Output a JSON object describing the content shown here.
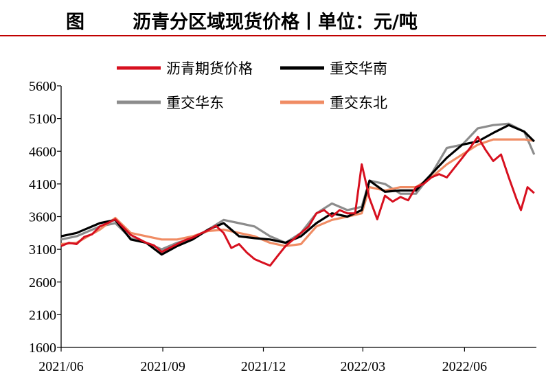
{
  "header": {
    "fig_label": "图",
    "title": "沥青分区域现货价格丨单位：元/吨"
  },
  "colors": {
    "rule": "#c00000",
    "futures": "#d7101f",
    "south": "#000000",
    "east": "#8c8c8c",
    "northeast": "#f08c64"
  },
  "chart_data": {
    "type": "line",
    "ylim": [
      1600,
      5600
    ],
    "yticks": [
      "5600",
      "5100",
      "4600",
      "4100",
      "3600",
      "3100",
      "2600",
      "2100",
      "1600"
    ],
    "xticks": [
      "2021/06",
      "2021/09",
      "2021/12",
      "2022/03",
      "2022/06"
    ],
    "xlim": [
      "2021-06-01",
      "2022-08-05"
    ],
    "legend_position": "top",
    "series": [
      {
        "name": "沥青期货价格",
        "key": "futures",
        "points": [
          [
            "2021-06-01",
            3150
          ],
          [
            "2021-06-08",
            3200
          ],
          [
            "2021-06-15",
            3180
          ],
          [
            "2021-06-22",
            3290
          ],
          [
            "2021-06-29",
            3330
          ],
          [
            "2021-07-06",
            3450
          ],
          [
            "2021-07-13",
            3500
          ],
          [
            "2021-07-20",
            3560
          ],
          [
            "2021-07-27",
            3440
          ],
          [
            "2021-08-03",
            3320
          ],
          [
            "2021-08-10",
            3260
          ],
          [
            "2021-08-17",
            3200
          ],
          [
            "2021-08-24",
            3160
          ],
          [
            "2021-08-31",
            3060
          ],
          [
            "2021-09-07",
            3120
          ],
          [
            "2021-09-14",
            3180
          ],
          [
            "2021-09-21",
            3240
          ],
          [
            "2021-09-28",
            3280
          ],
          [
            "2021-10-05",
            3340
          ],
          [
            "2021-10-12",
            3390
          ],
          [
            "2021-10-19",
            3460
          ],
          [
            "2021-10-26",
            3350
          ],
          [
            "2021-11-02",
            3120
          ],
          [
            "2021-11-09",
            3180
          ],
          [
            "2021-11-16",
            3050
          ],
          [
            "2021-11-23",
            2950
          ],
          [
            "2021-11-30",
            2900
          ],
          [
            "2021-12-07",
            2850
          ],
          [
            "2021-12-14",
            3000
          ],
          [
            "2021-12-21",
            3150
          ],
          [
            "2021-12-28",
            3250
          ],
          [
            "2022-01-04",
            3350
          ],
          [
            "2022-01-11",
            3450
          ],
          [
            "2022-01-18",
            3650
          ],
          [
            "2022-01-25",
            3700
          ],
          [
            "2022-02-01",
            3600
          ],
          [
            "2022-02-08",
            3700
          ],
          [
            "2022-02-15",
            3650
          ],
          [
            "2022-02-22",
            3650
          ],
          [
            "2022-02-28",
            4400
          ],
          [
            "2022-03-07",
            3880
          ],
          [
            "2022-03-14",
            3560
          ],
          [
            "2022-03-21",
            3920
          ],
          [
            "2022-03-28",
            3830
          ],
          [
            "2022-04-04",
            3900
          ],
          [
            "2022-04-11",
            3850
          ],
          [
            "2022-04-18",
            4050
          ],
          [
            "2022-04-25",
            4100
          ],
          [
            "2022-05-02",
            4200
          ],
          [
            "2022-05-09",
            4250
          ],
          [
            "2022-05-16",
            4200
          ],
          [
            "2022-05-23",
            4350
          ],
          [
            "2022-05-30",
            4500
          ],
          [
            "2022-06-06",
            4650
          ],
          [
            "2022-06-13",
            4820
          ],
          [
            "2022-06-20",
            4620
          ],
          [
            "2022-06-27",
            4450
          ],
          [
            "2022-07-04",
            4550
          ],
          [
            "2022-07-11",
            4200
          ],
          [
            "2022-07-18",
            3870
          ],
          [
            "2022-07-22",
            3700
          ],
          [
            "2022-07-28",
            4050
          ],
          [
            "2022-08-03",
            3960
          ]
        ]
      },
      {
        "name": "重交华南",
        "key": "south",
        "points": [
          [
            "2021-06-01",
            3300
          ],
          [
            "2021-06-15",
            3350
          ],
          [
            "2021-07-06",
            3500
          ],
          [
            "2021-07-20",
            3550
          ],
          [
            "2021-08-03",
            3250
          ],
          [
            "2021-08-17",
            3200
          ],
          [
            "2021-08-31",
            3020
          ],
          [
            "2021-09-14",
            3150
          ],
          [
            "2021-09-28",
            3250
          ],
          [
            "2021-10-12",
            3400
          ],
          [
            "2021-10-26",
            3500
          ],
          [
            "2021-11-09",
            3300
          ],
          [
            "2021-11-23",
            3270
          ],
          [
            "2021-12-07",
            3250
          ],
          [
            "2021-12-21",
            3200
          ],
          [
            "2022-01-04",
            3300
          ],
          [
            "2022-01-18",
            3500
          ],
          [
            "2022-02-01",
            3650
          ],
          [
            "2022-02-15",
            3600
          ],
          [
            "2022-02-28",
            3700
          ],
          [
            "2022-03-07",
            4150
          ],
          [
            "2022-03-21",
            3980
          ],
          [
            "2022-04-04",
            4000
          ],
          [
            "2022-04-18",
            4000
          ],
          [
            "2022-05-02",
            4250
          ],
          [
            "2022-05-16",
            4500
          ],
          [
            "2022-05-30",
            4700
          ],
          [
            "2022-06-13",
            4750
          ],
          [
            "2022-06-27",
            4880
          ],
          [
            "2022-07-11",
            5000
          ],
          [
            "2022-07-25",
            4900
          ],
          [
            "2022-08-03",
            4750
          ]
        ]
      },
      {
        "name": "重交华东",
        "key": "east",
        "points": [
          [
            "2021-06-01",
            3250
          ],
          [
            "2021-06-15",
            3300
          ],
          [
            "2021-07-06",
            3450
          ],
          [
            "2021-07-20",
            3500
          ],
          [
            "2021-08-03",
            3270
          ],
          [
            "2021-08-17",
            3200
          ],
          [
            "2021-08-31",
            3100
          ],
          [
            "2021-09-14",
            3200
          ],
          [
            "2021-09-28",
            3270
          ],
          [
            "2021-10-12",
            3400
          ],
          [
            "2021-10-26",
            3550
          ],
          [
            "2021-11-09",
            3500
          ],
          [
            "2021-11-23",
            3450
          ],
          [
            "2021-12-07",
            3300
          ],
          [
            "2021-12-21",
            3200
          ],
          [
            "2022-01-04",
            3350
          ],
          [
            "2022-01-18",
            3650
          ],
          [
            "2022-02-01",
            3800
          ],
          [
            "2022-02-15",
            3700
          ],
          [
            "2022-02-28",
            3750
          ],
          [
            "2022-03-07",
            4150
          ],
          [
            "2022-03-21",
            4100
          ],
          [
            "2022-04-04",
            3950
          ],
          [
            "2022-04-18",
            3950
          ],
          [
            "2022-05-02",
            4250
          ],
          [
            "2022-05-16",
            4650
          ],
          [
            "2022-05-30",
            4700
          ],
          [
            "2022-06-13",
            4950
          ],
          [
            "2022-06-27",
            5000
          ],
          [
            "2022-07-11",
            5020
          ],
          [
            "2022-07-25",
            4900
          ],
          [
            "2022-08-03",
            4550
          ]
        ]
      },
      {
        "name": "重交东北",
        "key": "northeast",
        "points": [
          [
            "2021-06-01",
            3180
          ],
          [
            "2021-06-15",
            3200
          ],
          [
            "2021-07-06",
            3400
          ],
          [
            "2021-07-20",
            3580
          ],
          [
            "2021-08-03",
            3350
          ],
          [
            "2021-08-17",
            3300
          ],
          [
            "2021-08-31",
            3250
          ],
          [
            "2021-09-14",
            3250
          ],
          [
            "2021-09-28",
            3300
          ],
          [
            "2021-10-12",
            3380
          ],
          [
            "2021-10-26",
            3400
          ],
          [
            "2021-11-09",
            3350
          ],
          [
            "2021-11-23",
            3300
          ],
          [
            "2021-12-07",
            3200
          ],
          [
            "2021-12-21",
            3150
          ],
          [
            "2022-01-04",
            3180
          ],
          [
            "2022-01-18",
            3450
          ],
          [
            "2022-02-01",
            3550
          ],
          [
            "2022-02-15",
            3600
          ],
          [
            "2022-02-28",
            3650
          ],
          [
            "2022-03-07",
            4050
          ],
          [
            "2022-03-21",
            4000
          ],
          [
            "2022-04-04",
            4050
          ],
          [
            "2022-04-18",
            4050
          ],
          [
            "2022-05-02",
            4200
          ],
          [
            "2022-05-16",
            4400
          ],
          [
            "2022-05-30",
            4550
          ],
          [
            "2022-06-13",
            4700
          ],
          [
            "2022-06-27",
            4780
          ],
          [
            "2022-07-11",
            4780
          ],
          [
            "2022-07-25",
            4780
          ],
          [
            "2022-08-03",
            4760
          ]
        ]
      }
    ]
  }
}
